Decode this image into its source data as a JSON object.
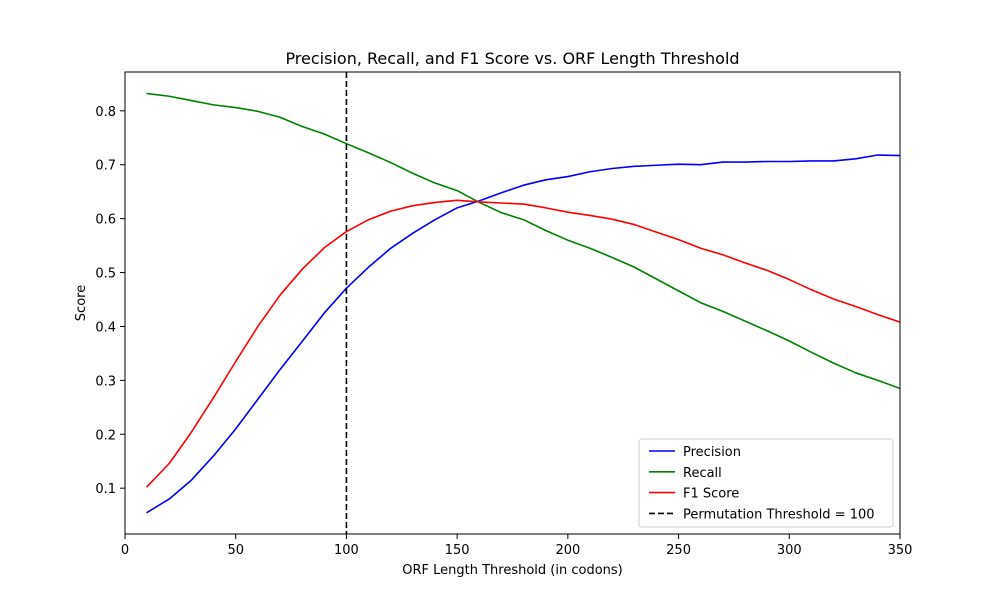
{
  "chart_data": {
    "type": "line",
    "title": "Precision, Recall, and F1 Score vs. ORF Length Threshold",
    "xlabel": "ORF Length Threshold (in codons)",
    "ylabel": "Score",
    "xlim": [
      0,
      350
    ],
    "ylim": [
      0.015,
      0.872
    ],
    "xticks": [
      0,
      50,
      100,
      150,
      200,
      250,
      300,
      350
    ],
    "yticks": [
      0.1,
      0.2,
      0.3,
      0.4,
      0.5,
      0.6,
      0.7,
      0.8
    ],
    "grid": false,
    "legend_position": "lower right",
    "x": [
      10,
      20,
      30,
      40,
      50,
      60,
      70,
      80,
      90,
      100,
      110,
      120,
      130,
      140,
      150,
      160,
      170,
      180,
      190,
      200,
      210,
      220,
      230,
      240,
      250,
      260,
      270,
      280,
      290,
      300,
      310,
      320,
      330,
      340,
      350
    ],
    "series": [
      {
        "name": "Precision",
        "color": "#0000ff",
        "values": [
          0.055,
          0.08,
          0.115,
          0.16,
          0.21,
          0.265,
          0.32,
          0.372,
          0.425,
          0.471,
          0.51,
          0.545,
          0.573,
          0.598,
          0.62,
          0.633,
          0.648,
          0.662,
          0.672,
          0.678,
          0.687,
          0.693,
          0.697,
          0.699,
          0.701,
          0.7,
          0.705,
          0.705,
          0.706,
          0.706,
          0.707,
          0.707,
          0.711,
          0.718,
          0.717
        ]
      },
      {
        "name": "Recall",
        "color": "#008000",
        "values": [
          0.832,
          0.827,
          0.819,
          0.811,
          0.806,
          0.799,
          0.788,
          0.771,
          0.757,
          0.739,
          0.722,
          0.704,
          0.684,
          0.666,
          0.652,
          0.63,
          0.611,
          0.598,
          0.578,
          0.56,
          0.545,
          0.528,
          0.51,
          0.488,
          0.466,
          0.444,
          0.428,
          0.41,
          0.392,
          0.373,
          0.352,
          0.332,
          0.314,
          0.3,
          0.285
        ]
      },
      {
        "name": "F1 Score",
        "color": "#ff0000",
        "values": [
          0.103,
          0.146,
          0.204,
          0.268,
          0.335,
          0.4,
          0.458,
          0.506,
          0.546,
          0.576,
          0.598,
          0.614,
          0.624,
          0.63,
          0.634,
          0.631,
          0.629,
          0.627,
          0.62,
          0.612,
          0.606,
          0.599,
          0.589,
          0.575,
          0.561,
          0.545,
          0.533,
          0.518,
          0.504,
          0.487,
          0.468,
          0.451,
          0.437,
          0.422,
          0.408
        ]
      }
    ],
    "vline": {
      "x": 100,
      "label": "Permutation Threshold = 100",
      "color": "#000000",
      "style": "dashed"
    }
  }
}
